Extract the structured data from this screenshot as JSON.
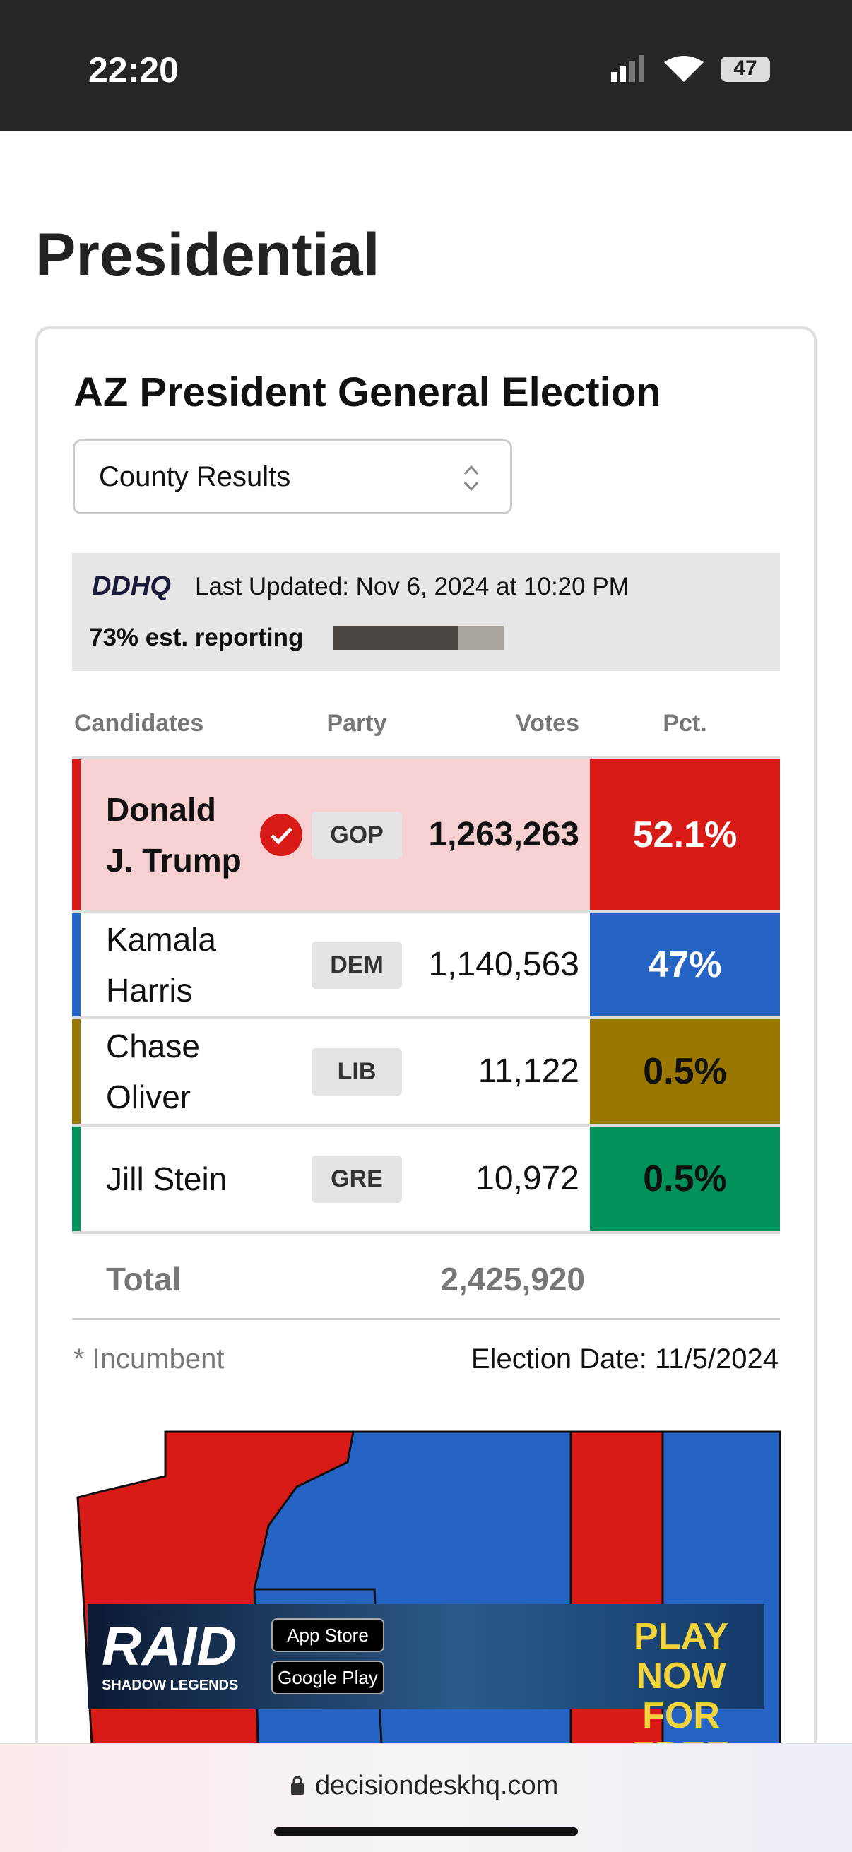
{
  "status_bar": {
    "time": "22:20",
    "battery": "47"
  },
  "page_title": "Presidential",
  "card": {
    "title": "AZ President General Election",
    "dropdown": "County Results",
    "logo": "DDHQ",
    "last_updated": "Last Updated: Nov 6, 2024 at 10:20 PM",
    "reporting_label": "73% est. reporting",
    "reporting_pct": 73,
    "table": {
      "headers": [
        "Candidates",
        "Party",
        "Votes",
        "Pct."
      ],
      "rows": [
        {
          "name": "Donald J. Trump",
          "party": "GOP",
          "votes": "1,263,263",
          "pct": "52.1%",
          "color": "#d81b17",
          "winner": true
        },
        {
          "name": "Kamala Harris",
          "party": "DEM",
          "votes": "1,140,563",
          "pct": "47%",
          "color": "#2563c4",
          "winner": false
        },
        {
          "name": "Chase Oliver",
          "party": "LIB",
          "votes": "11,122",
          "pct": "0.5%",
          "color": "#9a7700",
          "winner": false
        },
        {
          "name": "Jill Stein",
          "party": "GRE",
          "votes": "10,972",
          "pct": "0.5%",
          "color": "#00925a",
          "winner": false
        }
      ],
      "total_label": "Total",
      "total_votes": "2,425,920"
    },
    "footnote": "* Incumbent",
    "election_date": "Election Date: 11/5/2024"
  },
  "ad": {
    "brand": "RAID",
    "brand_sub": "SHADOW LEGENDS",
    "store1": "App Store",
    "store2": "Google Play",
    "cta": "PLAY NOW FOR FREE"
  },
  "url": "decisiondeskhq.com"
}
